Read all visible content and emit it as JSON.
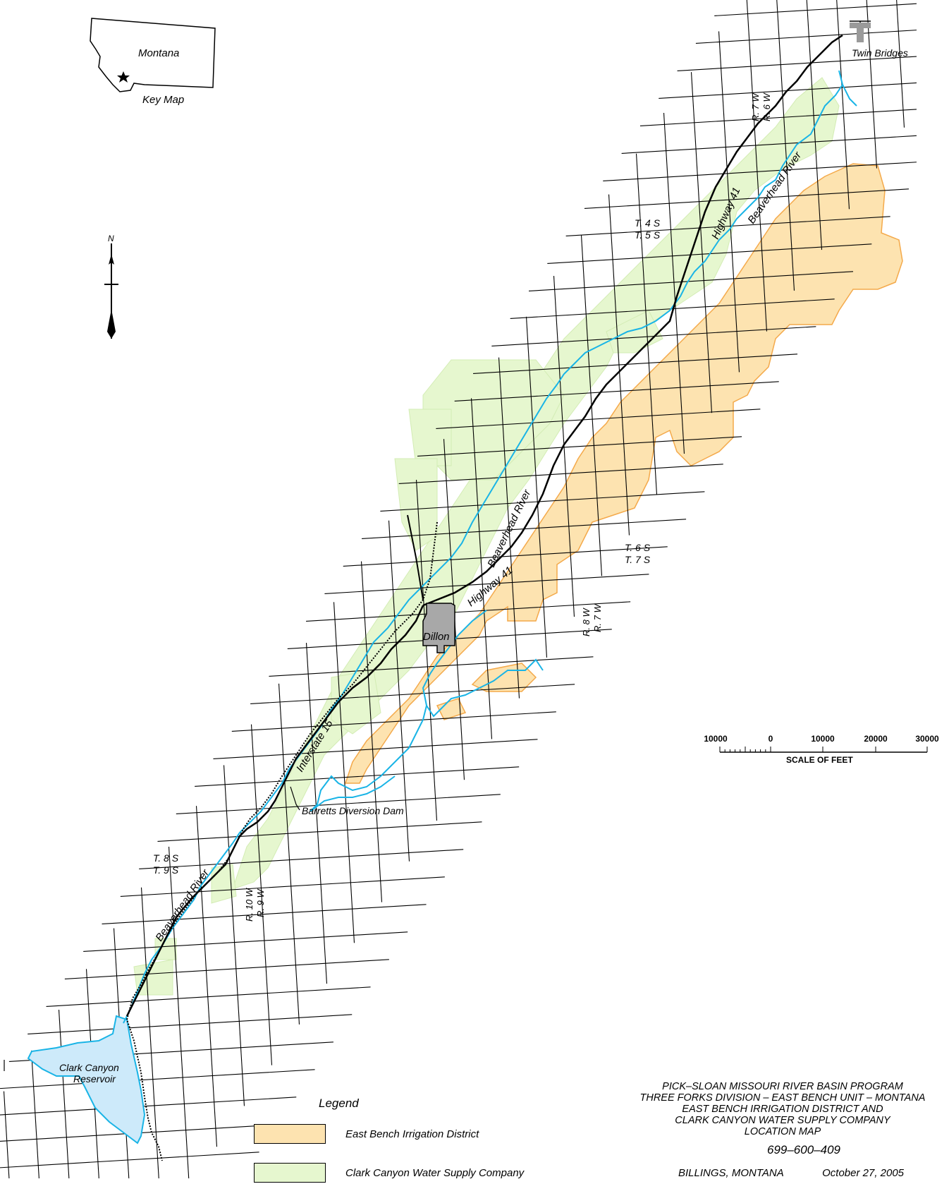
{
  "key_map": {
    "state_label": "Montana",
    "caption": "Key Map"
  },
  "north_arrow": {
    "letter": "N"
  },
  "places": {
    "twin_bridges": "Twin Bridges",
    "dillon": "Dillon",
    "reservoir_line1": "Clark Canyon",
    "reservoir_line2": "Reservoir",
    "dam": "Barretts Diversion Dam"
  },
  "roads": {
    "highway_41_north": "Highway 41",
    "highway_41_south": "Highway 41",
    "interstate": "Interstate 15"
  },
  "rivers": {
    "upper": "Beaverhead River",
    "middle": "Beaverhead River",
    "lower": "Beaverhead River"
  },
  "survey_labels": {
    "r7w_top": "R. 7 W",
    "r6w_top": "R. 6 W",
    "t4s": "T. 4 S",
    "t5s": "T. 5 S",
    "t6s": "T. 6 S",
    "t7s": "T. 7 S",
    "r8w": "R. 8 W",
    "r7w_mid": "R. 7 W",
    "t8s": "T. 8 S",
    "t9s": "T. 9 S",
    "r10w": "R. 10 W",
    "r9w": "R. 9 W"
  },
  "scale_bar": {
    "tick_labels": [
      "10000",
      "0",
      "10000",
      "20000",
      "30000"
    ],
    "unit": "SCALE OF FEET"
  },
  "legend": {
    "title": "Legend",
    "items": [
      {
        "label": "East Bench Irrigation District",
        "color": "#fde3b0",
        "border": "#f4a94a"
      },
      {
        "label": "Clark Canyon Water Supply Company",
        "color": "#e6f7cf",
        "border": "#cfe8b0"
      }
    ]
  },
  "title_block": {
    "lines": [
      "PICK–SLOAN MISSOURI RIVER BASIN PROGRAM",
      "THREE FORKS DIVISION – EAST BENCH  UNIT – MONTANA",
      "EAST BENCH IRRIGATION DISTRICT AND",
      "CLARK CANYON WATER SUPPLY COMPANY",
      "LOCATION MAP"
    ],
    "drawing_number": "699–600–409",
    "place": "BILLINGS, MONTANA",
    "date": "October 27, 2005"
  },
  "colors": {
    "river": "#19b4e6",
    "reservoir": "#cdeafa",
    "dillon_fill": "#a8a8a8",
    "grid": "#000000"
  }
}
